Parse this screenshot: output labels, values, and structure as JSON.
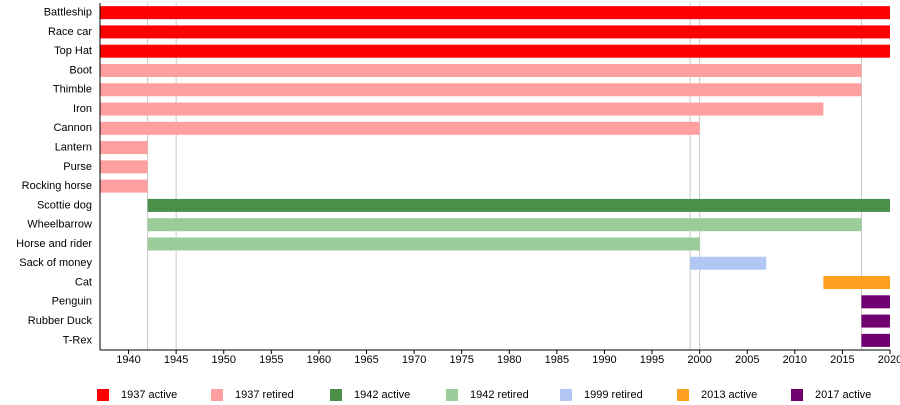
{
  "chart_data": {
    "type": "timeline",
    "categories": [
      "Battleship",
      "Race car",
      "Top Hat",
      "Boot",
      "Thimble",
      "Iron",
      "Cannon",
      "Lantern",
      "Purse",
      "Rocking horse",
      "Scottie dog",
      "Wheelbarrow",
      "Horse and rider",
      "Sack of money",
      "Cat",
      "Penguin",
      "Rubber Duck",
      "T-Rex"
    ],
    "series": [
      {
        "name": "1937 active",
        "color": "#ff0000",
        "values": [
          [
            1937,
            2020
          ],
          [
            1937,
            2020
          ],
          [
            1937,
            2020
          ],
          null,
          null,
          null,
          null,
          null,
          null,
          null,
          null,
          null,
          null,
          null,
          null,
          null,
          null,
          null
        ]
      },
      {
        "name": "1937 retired",
        "color": "#ff9f9f",
        "values": [
          null,
          null,
          null,
          [
            1937,
            2017
          ],
          [
            1937,
            2017
          ],
          [
            1937,
            2013
          ],
          [
            1937,
            2000
          ],
          [
            1937,
            1942
          ],
          [
            1937,
            1942
          ],
          [
            1937,
            1942
          ],
          null,
          null,
          null,
          null,
          null,
          null,
          null,
          null
        ]
      },
      {
        "name": "1942 active",
        "color": "#4a8f4a",
        "values": [
          null,
          null,
          null,
          null,
          null,
          null,
          null,
          null,
          null,
          null,
          [
            1942,
            2020
          ],
          null,
          null,
          null,
          null,
          null,
          null,
          null
        ]
      },
      {
        "name": "1942 retired",
        "color": "#99cc99",
        "values": [
          null,
          null,
          null,
          null,
          null,
          null,
          null,
          null,
          null,
          null,
          null,
          [
            1942,
            2017
          ],
          [
            1942,
            2000
          ],
          null,
          null,
          null,
          null,
          null
        ]
      },
      {
        "name": "1999 retired",
        "color": "#b3c7f7",
        "values": [
          null,
          null,
          null,
          null,
          null,
          null,
          null,
          null,
          null,
          null,
          null,
          null,
          null,
          [
            1999,
            2007
          ],
          null,
          null,
          null,
          null
        ]
      },
      {
        "name": "2013 active",
        "color": "#ffa020",
        "values": [
          null,
          null,
          null,
          null,
          null,
          null,
          null,
          null,
          null,
          null,
          null,
          null,
          null,
          null,
          [
            2013,
            2020
          ],
          null,
          null,
          null
        ]
      },
      {
        "name": "2017 active",
        "color": "#700070",
        "values": [
          null,
          null,
          null,
          null,
          null,
          null,
          null,
          null,
          null,
          null,
          null,
          null,
          null,
          null,
          null,
          [
            2017,
            2020
          ],
          [
            2017,
            2020
          ],
          [
            2017,
            2020
          ]
        ]
      }
    ],
    "xlim": [
      1937,
      2020
    ],
    "xticks": [
      1940,
      1945,
      1950,
      1955,
      1960,
      1965,
      1970,
      1975,
      1980,
      1985,
      1990,
      1995,
      2000,
      2005,
      2010,
      2015,
      2020
    ],
    "grid_lines": [
      1942,
      1945,
      1999,
      2000,
      2017
    ],
    "legend": "bottom"
  }
}
